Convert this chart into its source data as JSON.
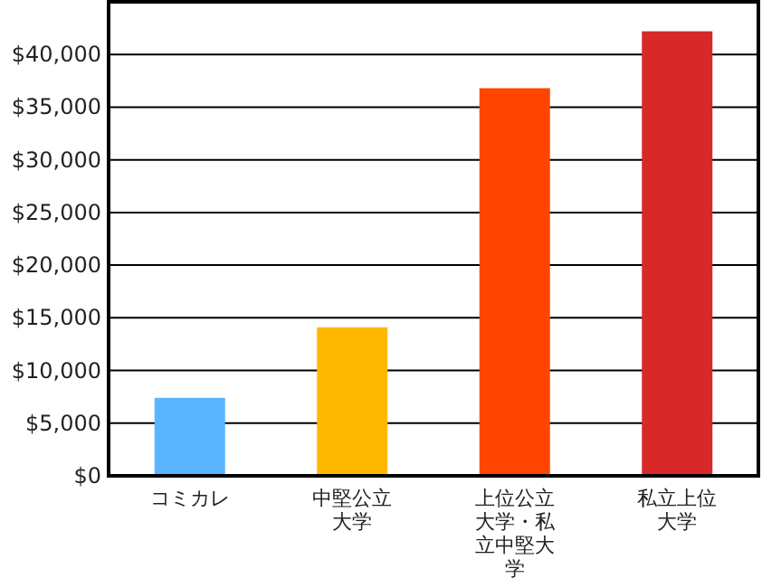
{
  "chart_data": {
    "type": "bar",
    "categories": [
      "コミカレ",
      "中堅公立大学",
      "上位公立大学・私立中堅大学",
      "私立上位大学"
    ],
    "values": [
      7400,
      14100,
      36800,
      42200
    ],
    "colors": [
      "#5ab4ff",
      "#ffb800",
      "#ff4500",
      "#d92828"
    ],
    "ylim": [
      0,
      45000
    ],
    "yticks": [
      {
        "value": 0,
        "label": "$0"
      },
      {
        "value": 5000,
        "label": "$5,000"
      },
      {
        "value": 10000,
        "label": "$10,000"
      },
      {
        "value": 15000,
        "label": "$15,000"
      },
      {
        "value": 20000,
        "label": "$20,000"
      },
      {
        "value": 25000,
        "label": "$25,000"
      },
      {
        "value": 30000,
        "label": "$30,000"
      },
      {
        "value": 35000,
        "label": "$35,000"
      },
      {
        "value": 40000,
        "label": "$40,000"
      }
    ],
    "grid": "y"
  }
}
